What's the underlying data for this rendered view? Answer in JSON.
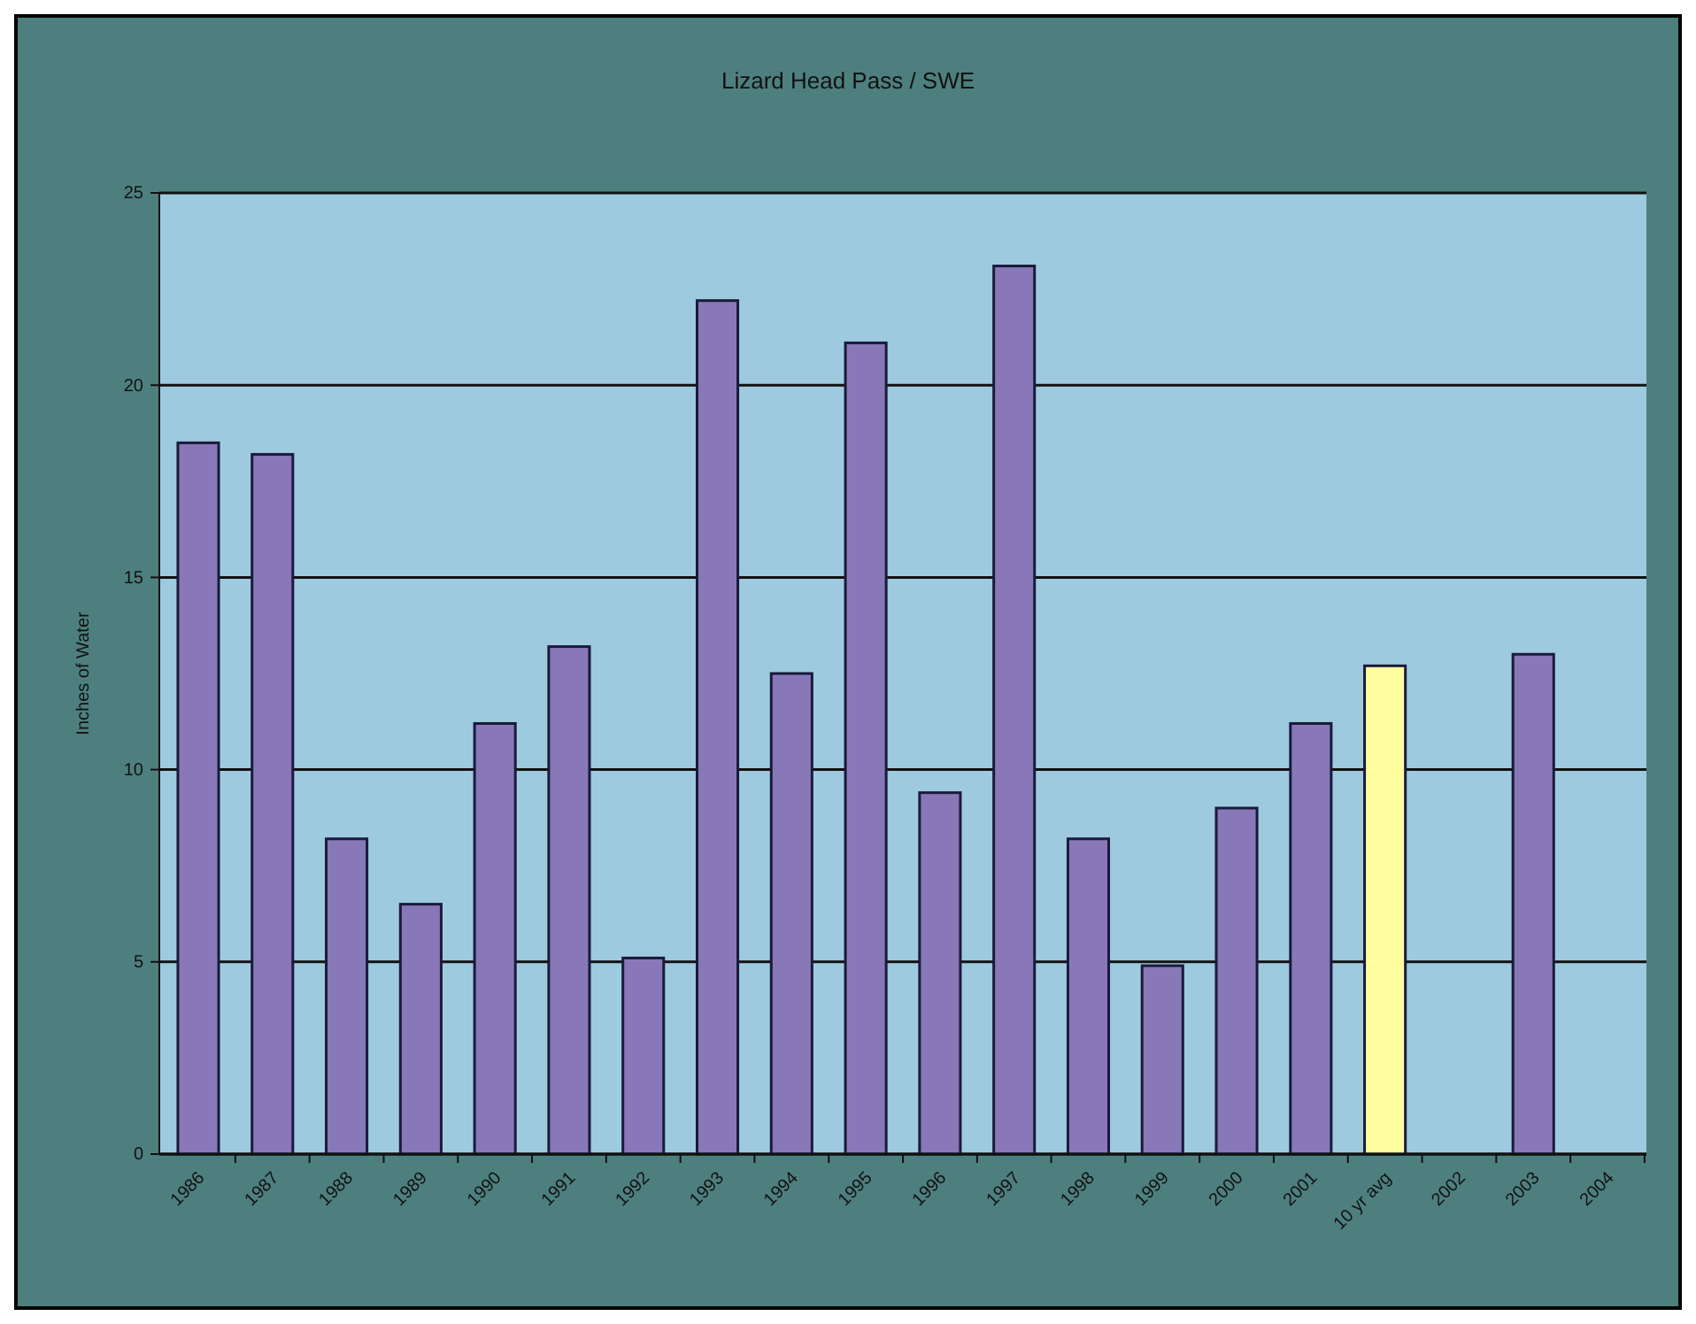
{
  "chart_data": {
    "type": "bar",
    "title": "Lizard Head Pass / SWE",
    "ylabel": "Inches of Water",
    "categories": [
      "1986",
      "1987",
      "1988",
      "1989",
      "1990",
      "1991",
      "1992",
      "1993",
      "1994",
      "1995",
      "1996",
      "1997",
      "1998",
      "1999",
      "2000",
      "2001",
      "10 yr avg",
      "2002",
      "2003",
      "2004"
    ],
    "values": [
      18.5,
      18.2,
      8.2,
      6.5,
      11.2,
      13.2,
      5.1,
      22.2,
      12.5,
      21.1,
      9.4,
      23.1,
      8.2,
      4.9,
      9.0,
      11.2,
      12.7,
      null,
      13.0,
      null
    ],
    "colors": [
      "#8878b8",
      "#8878b8",
      "#8878b8",
      "#8878b8",
      "#8878b8",
      "#8878b8",
      "#8878b8",
      "#8878b8",
      "#8878b8",
      "#8878b8",
      "#8878b8",
      "#8878b8",
      "#8878b8",
      "#8878b8",
      "#8878b8",
      "#8878b8",
      "#ffffa0",
      null,
      "#8878b8",
      null
    ],
    "ylim": [
      0,
      25
    ],
    "yticks": [
      0,
      5,
      10,
      15,
      20,
      25
    ],
    "grid": "y"
  }
}
